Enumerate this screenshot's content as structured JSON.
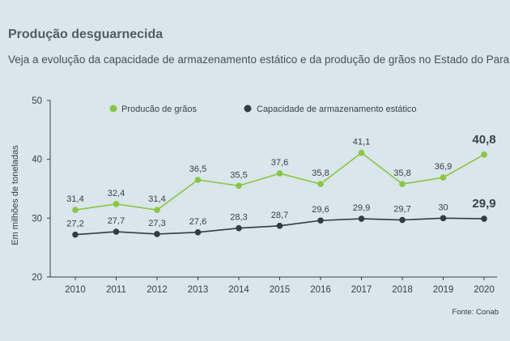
{
  "header": {
    "title": "Produção desguarnecida",
    "subtitle": "Veja a evolução da capacidade de armazenamento estático e da produção de grãos no Estado do Paraná"
  },
  "source": "Fonte: Conab",
  "colors": {
    "production": "#8cc63f",
    "capacity": "#2f3d44",
    "background": "#d9e6ec"
  },
  "chart_data": {
    "type": "line",
    "title": "Produção desguarnecida",
    "xlabel": "",
    "ylabel": "Em milhões de toneladas",
    "ylim": [
      20,
      50
    ],
    "yticks": [
      "20",
      "30",
      "40",
      "50"
    ],
    "grid": false,
    "legend_position": "top",
    "categories": [
      "2010",
      "2011",
      "2012",
      "2013",
      "2014",
      "2015",
      "2016",
      "2017",
      "2018",
      "2019",
      "2020"
    ],
    "series": [
      {
        "name": "Producão de grãos",
        "color": "#8cc63f",
        "values": [
          31.4,
          32.4,
          31.4,
          36.5,
          35.5,
          37.6,
          35.8,
          41.1,
          35.8,
          36.9,
          40.8
        ],
        "labels": [
          "31,4",
          "32,4",
          "31,4",
          "36,5",
          "35,5",
          "37,6",
          "35,8",
          "41,1",
          "35,8",
          "36,9",
          "40,8"
        ]
      },
      {
        "name": "Capacidade de armazenamento estático",
        "color": "#2f3d44",
        "values": [
          27.2,
          27.7,
          27.3,
          27.6,
          28.3,
          28.7,
          29.6,
          29.9,
          29.7,
          30,
          29.9
        ],
        "labels": [
          "27,2",
          "27,7",
          "27,3",
          "27,6",
          "28,3",
          "28,7",
          "29,6",
          "29,9",
          "29,7",
          "30",
          "29,9"
        ]
      }
    ]
  }
}
